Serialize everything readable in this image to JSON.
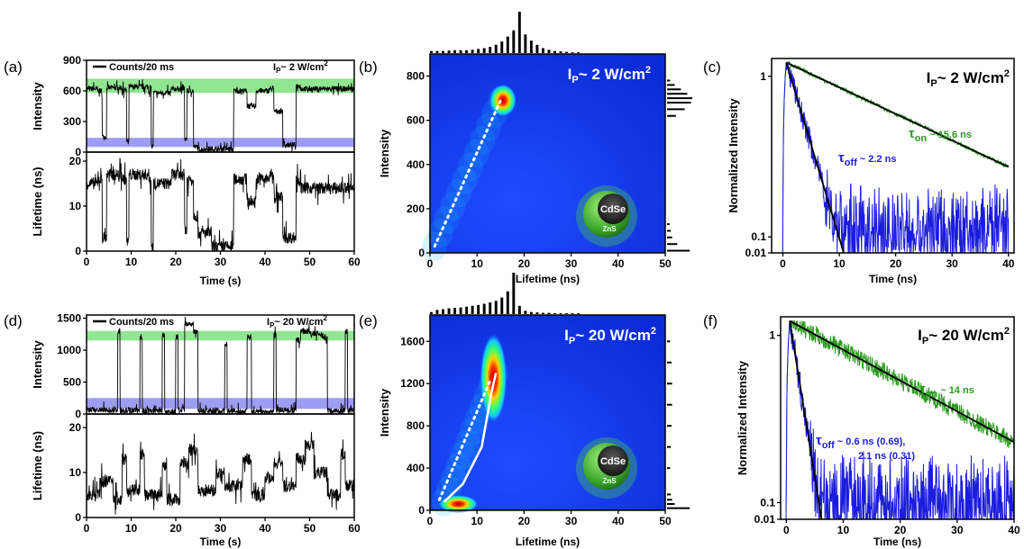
{
  "colors": {
    "green": "#2a9a1e",
    "blue": "#1c1cde",
    "black": "#000000",
    "on_band": "#7ee27e",
    "off_band": "#8c8cf2"
  },
  "panels": {
    "a": {
      "label": "(a)",
      "legend": "Counts/20 ms",
      "power_prefix": "I",
      "power_sub": "P",
      "power_value": "~ 2 W/cm",
      "power_sup": "2"
    },
    "b": {
      "label": "(b)",
      "power_prefix": "I",
      "power_sub": "P",
      "power_value": "~ 2 W/cm",
      "power_sup": "2",
      "core": "CdSe",
      "shell": "ZnS"
    },
    "c": {
      "label": "(c)",
      "power_prefix": "I",
      "power_sub": "P",
      "power_value": "~ 2 W/cm",
      "power_sup": "2",
      "tau_on_sub": "on",
      "tau_on_value": " ~ 15.6 ns",
      "tau_off_sub": "off",
      "tau_off_value": " ~ 2.2 ns"
    },
    "d": {
      "label": "(d)",
      "legend": "Counts/20 ms",
      "power_prefix": "I",
      "power_sub": "P",
      "power_value": "~ 20 W/cm",
      "power_sup": "2"
    },
    "e": {
      "label": "(e)",
      "power_prefix": "I",
      "power_sub": "P",
      "power_value": "~ 20 W/cm",
      "power_sup": "2",
      "core": "CdSe",
      "shell": "ZnS"
    },
    "f": {
      "label": "(f)",
      "power_prefix": "I",
      "power_sub": "P",
      "power_value": "~ 20 W/cm",
      "power_sup": "2",
      "tau_on_sub": "on",
      "tau_on_value": " ~ 14 ns",
      "tau_off_sub": "off",
      "tau_off_value": " ~ 0.6 ns (0.69),",
      "tau_off_line2": "2.1 ns (0.31)"
    }
  },
  "chart_data": [
    {
      "panel": "a",
      "type": "line",
      "xlabel": "Time (s)",
      "top": {
        "ylabel": "Intensity",
        "yticks": [
          "0",
          "300",
          "600",
          "900"
        ],
        "ylim": [
          0,
          900
        ],
        "on_band": [
          580,
          720
        ],
        "off_band": [
          50,
          140
        ],
        "segments": [
          [
            0,
            620
          ],
          [
            2.5,
            600
          ],
          [
            3.5,
            150
          ],
          [
            4.5,
            630
          ],
          [
            8,
            610
          ],
          [
            9,
            100
          ],
          [
            9.5,
            640
          ],
          [
            14,
            600
          ],
          [
            14.5,
            60
          ],
          [
            15,
            580
          ],
          [
            19,
            620
          ],
          [
            22,
            130
          ],
          [
            22.5,
            600
          ],
          [
            24,
            50
          ],
          [
            25,
            30
          ],
          [
            33,
            600
          ],
          [
            36,
            450
          ],
          [
            38,
            600
          ],
          [
            41,
            620
          ],
          [
            42,
            400
          ],
          [
            44,
            70
          ],
          [
            47,
            650
          ],
          [
            48,
            620
          ],
          [
            60,
            640
          ]
        ]
      },
      "bottom": {
        "ylabel": "Lifetime (ns)",
        "yticks": [
          "0",
          "10",
          "20"
        ],
        "ylim": [
          0,
          22
        ],
        "segments": [
          [
            0,
            15
          ],
          [
            2.5,
            16
          ],
          [
            3.5,
            3
          ],
          [
            4.5,
            17
          ],
          [
            8,
            16
          ],
          [
            9,
            2
          ],
          [
            9.5,
            17
          ],
          [
            14,
            16
          ],
          [
            14.5,
            1
          ],
          [
            15,
            15
          ],
          [
            19,
            17
          ],
          [
            22,
            5
          ],
          [
            22.5,
            16
          ],
          [
            24,
            8
          ],
          [
            25,
            4
          ],
          [
            28,
            1
          ],
          [
            33,
            16
          ],
          [
            36,
            11
          ],
          [
            38,
            16
          ],
          [
            41,
            17
          ],
          [
            42,
            12
          ],
          [
            44,
            3
          ],
          [
            47,
            16
          ],
          [
            48,
            14
          ],
          [
            60,
            15
          ]
        ]
      },
      "xticks": [
        "0",
        "10",
        "20",
        "30",
        "40",
        "50",
        "60"
      ],
      "xlim": [
        0,
        60
      ]
    },
    {
      "panel": "b",
      "type": "heatmap",
      "xlabel": "Lifetime (ns)",
      "ylabel": "Intensity",
      "xticks": [
        "0",
        "10",
        "20",
        "30",
        "40",
        "50"
      ],
      "xlim": [
        0,
        50
      ],
      "yticks": [
        "0",
        "200",
        "400",
        "600",
        "800"
      ],
      "ylim": [
        0,
        900
      ],
      "hotspot": {
        "x": 15.5,
        "y": 690
      },
      "trend": [
        [
          1,
          30
        ],
        [
          15,
          690
        ]
      ],
      "top_hist": [
        0.05,
        0.05,
        0.05,
        0.06,
        0.07,
        0.07,
        0.07,
        0.08,
        0.1,
        0.12,
        0.15,
        0.2,
        0.28,
        0.4,
        0.55,
        1.0,
        0.45,
        0.3,
        0.2,
        0.12,
        0.08,
        0.05,
        0.04,
        0.03,
        0.02,
        0.02
      ],
      "right_hist_y": [
        10,
        40,
        70,
        100,
        130,
        620,
        650,
        680,
        700,
        720,
        740,
        760,
        780
      ],
      "right_hist_v": [
        0.9,
        0.4,
        0.2,
        0.15,
        0.1,
        0.35,
        0.7,
        0.95,
        1.0,
        0.8,
        0.55,
        0.3,
        0.12
      ]
    },
    {
      "panel": "c",
      "type": "line",
      "xlabel": "Time (ns)",
      "ylabel": "Normalized Intensity",
      "yscale": "log",
      "xticks": [
        "0",
        "10",
        "20",
        "30",
        "40"
      ],
      "xlim": [
        -2,
        41
      ],
      "yticks": [
        "0.01",
        "0.1",
        "1"
      ],
      "ylim": [
        0.01,
        1.1
      ],
      "series": [
        {
          "name": "τon ~ 15.6 ns",
          "tau": 15.6,
          "color": "#2a9a1e",
          "noise": 0.08
        },
        {
          "name": "τoff ~ 2.2 ns",
          "tau": 2.2,
          "color": "#1c1cde",
          "noise": 0.5,
          "floor": 0.015
        }
      ]
    },
    {
      "panel": "d",
      "type": "line",
      "xlabel": "Time (s)",
      "top": {
        "ylabel": "Intensity",
        "yticks": [
          "0",
          "500",
          "1000",
          "1500"
        ],
        "ylim": [
          0,
          1550
        ],
        "on_band": [
          1150,
          1300
        ],
        "off_band": [
          80,
          250
        ],
        "segments": [
          [
            0,
            60
          ],
          [
            7,
            1300
          ],
          [
            7.5,
            60
          ],
          [
            12,
            1200
          ],
          [
            12.5,
            50
          ],
          [
            17,
            1250
          ],
          [
            17.5,
            40
          ],
          [
            20,
            1200
          ],
          [
            20.5,
            60
          ],
          [
            22,
            1400
          ],
          [
            24,
            1300
          ],
          [
            25,
            50
          ],
          [
            31,
            1100
          ],
          [
            31.5,
            40
          ],
          [
            36,
            1200
          ],
          [
            37,
            30
          ],
          [
            42,
            1250
          ],
          [
            42.5,
            60
          ],
          [
            47,
            1150
          ],
          [
            48,
            1300
          ],
          [
            50,
            1250
          ],
          [
            53,
            1200
          ],
          [
            54,
            50
          ],
          [
            58,
            1300
          ],
          [
            58.5,
            60
          ],
          [
            60,
            50
          ]
        ]
      },
      "bottom": {
        "ylabel": "Lifetime (ns)",
        "yticks": [
          "0",
          "10",
          "20"
        ],
        "ylim": [
          0,
          23
        ],
        "segments": [
          [
            0,
            5
          ],
          [
            3,
            8
          ],
          [
            6,
            4
          ],
          [
            8,
            13
          ],
          [
            9,
            6
          ],
          [
            12,
            14
          ],
          [
            13,
            5
          ],
          [
            17,
            11
          ],
          [
            18,
            4
          ],
          [
            21,
            12
          ],
          [
            23,
            15
          ],
          [
            25,
            6
          ],
          [
            29,
            10
          ],
          [
            31,
            7
          ],
          [
            35,
            13
          ],
          [
            37,
            5
          ],
          [
            40,
            9
          ],
          [
            42,
            12
          ],
          [
            44,
            7
          ],
          [
            47,
            13
          ],
          [
            49,
            16
          ],
          [
            51,
            10
          ],
          [
            54,
            5
          ],
          [
            57,
            14
          ],
          [
            58,
            7
          ],
          [
            60,
            3
          ]
        ]
      },
      "xticks": [
        "0",
        "10",
        "20",
        "30",
        "40",
        "50",
        "60"
      ],
      "xlim": [
        0,
        60
      ]
    },
    {
      "panel": "e",
      "type": "heatmap",
      "xlabel": "Lifetime (ns)",
      "ylabel": "Intensity",
      "xticks": [
        "0",
        "10",
        "20",
        "30",
        "40",
        "50"
      ],
      "xlim": [
        0,
        50
      ],
      "yticks": [
        "0",
        "400",
        "800",
        "1200",
        "1600"
      ],
      "ylim": [
        0,
        1850
      ],
      "hotspots": [
        {
          "x": 13.5,
          "y": 1250
        },
        {
          "x": 6,
          "y": 60
        }
      ],
      "trend_dotted": [
        [
          2,
          100
        ],
        [
          13,
          1250
        ]
      ],
      "trend_solid": [
        [
          3,
          80
        ],
        [
          7,
          250
        ],
        [
          11,
          600
        ],
        [
          13,
          1100
        ],
        [
          14,
          1300
        ]
      ],
      "top_hist": [
        0.05,
        0.1,
        0.12,
        0.14,
        0.15,
        0.16,
        0.18,
        0.2,
        0.22,
        0.25,
        0.28,
        0.32,
        0.4,
        0.55,
        1.0,
        0.2,
        0.08,
        0.05,
        0.04,
        0.03,
        0.03,
        0.02,
        0.02,
        0.02,
        0.02,
        0.02
      ],
      "right_hist_y": [
        20,
        60,
        100,
        150,
        400,
        600,
        800,
        1000,
        1200,
        1400,
        1600
      ],
      "right_hist_v": [
        0.9,
        0.3,
        0.2,
        0.15,
        0.12,
        0.15,
        0.18,
        0.2,
        0.2,
        0.18,
        0.12
      ]
    },
    {
      "panel": "f",
      "type": "line",
      "xlabel": "Time (ns)",
      "ylabel": "Normalized Intensity",
      "yscale": "log",
      "xticks": [
        "0",
        "10",
        "20",
        "30",
        "40"
      ],
      "xlim": [
        -1,
        40
      ],
      "yticks": [
        "0.01",
        "0.1",
        "1"
      ],
      "ylim": [
        0.01,
        1.1
      ],
      "series": [
        {
          "name": "τon ~ 14 ns",
          "tau": 14,
          "color": "#2a9a1e",
          "noise": 0.35
        },
        {
          "name": "τoff ~ 0.6 ns (0.69), 2.1 ns (0.31)",
          "tau": 1.2,
          "color": "#1c1cde",
          "noise": 0.6,
          "floor": 0.012
        }
      ]
    }
  ]
}
